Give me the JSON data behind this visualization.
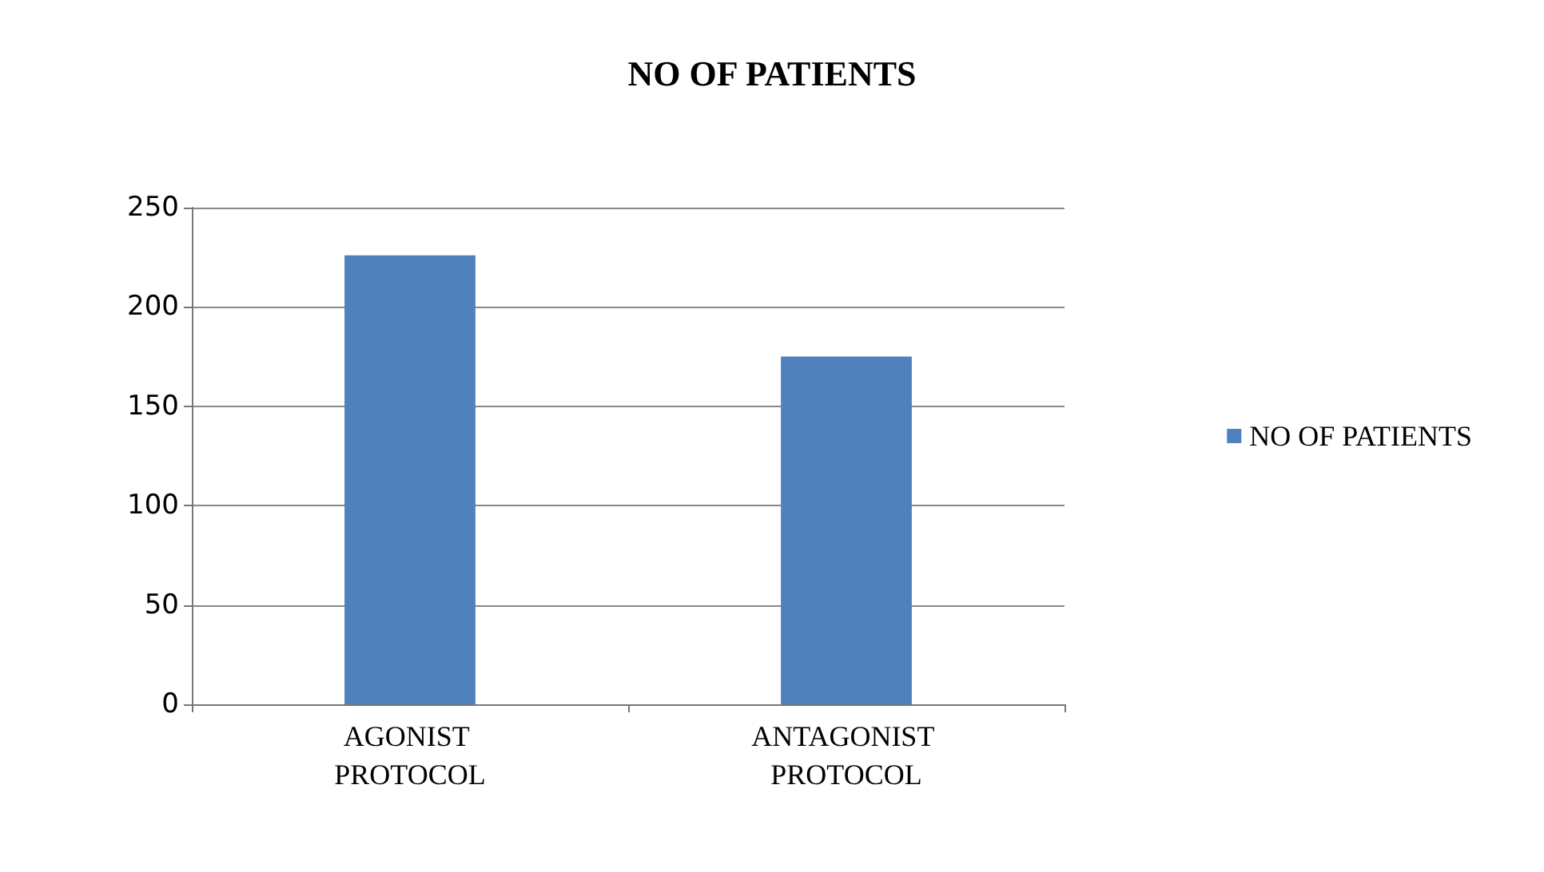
{
  "chart_data": {
    "type": "bar",
    "title": "NO OF PATIENTS",
    "categories": [
      "AGONIST PROTOCOL",
      "ANTAGONIST PROTOCOL"
    ],
    "series": [
      {
        "name": "NO OF PATIENTS",
        "color": "#4f81bd",
        "values": [
          226,
          175
        ]
      }
    ],
    "ylim": [
      0,
      250
    ],
    "yticks": [
      0,
      50,
      100,
      150,
      200,
      250
    ],
    "grid": "y",
    "legend": "right"
  }
}
